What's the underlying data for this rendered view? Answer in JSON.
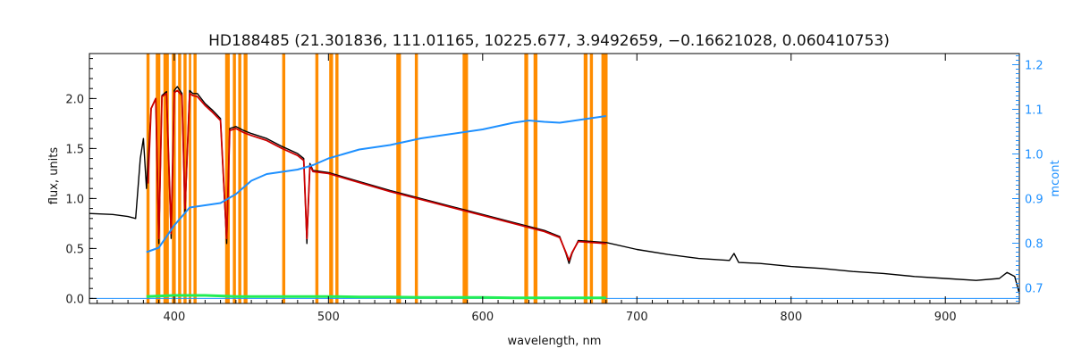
{
  "chart_data": {
    "type": "line",
    "title": "HD188485   (21.301836, 111.01165, 10225.677, 3.9492659, −0.16621028, 0.060410753)",
    "xlabel": "wavelength, nm",
    "ylabel": "flux, units",
    "y2label": "mcont",
    "xlim": [
      345,
      948
    ],
    "ylim": [
      -0.05,
      2.45
    ],
    "y2lim": [
      0.665,
      1.225
    ],
    "x_ticks": [
      400,
      500,
      600,
      700,
      800,
      900
    ],
    "y_ticks": [
      0.0,
      0.5,
      1.0,
      1.5,
      2.0
    ],
    "y2_ticks": [
      0.7,
      0.8,
      0.9,
      1.0,
      1.1,
      1.2
    ],
    "grid": false,
    "colors": {
      "observed": "#000000",
      "model": "#cc0000",
      "continuum": "#1e90ff",
      "residuals": "#22ee55",
      "masks": "#ff8c00"
    },
    "mask_windows_nm": [
      [
        382,
        384
      ],
      [
        388,
        391
      ],
      [
        393,
        396.5
      ],
      [
        398.5,
        401
      ],
      [
        402.5,
        404.5
      ],
      [
        406,
        408
      ],
      [
        409.5,
        411
      ],
      [
        412.5,
        414.5
      ],
      [
        433,
        436
      ],
      [
        438,
        440
      ],
      [
        441.5,
        443.5
      ],
      [
        445,
        447.5
      ],
      [
        470,
        472
      ],
      [
        491.5,
        493.5
      ],
      [
        500.5,
        503
      ],
      [
        504.5,
        506.5
      ],
      [
        544,
        547
      ],
      [
        556,
        558
      ],
      [
        587,
        590.5
      ],
      [
        627,
        629.5
      ],
      [
        633,
        635.5
      ],
      [
        665.5,
        668
      ],
      [
        669.5,
        671.5
      ],
      [
        677,
        681
      ]
    ],
    "series": [
      {
        "name": "",
        "role": "observed",
        "axis": "left",
        "x": [
          345,
          360,
          370,
          375,
          378,
          380,
          382,
          385,
          388,
          390,
          392,
          395,
          398,
          400,
          402,
          405,
          407,
          410,
          412,
          415,
          420,
          425,
          430,
          434,
          436,
          440,
          445,
          450,
          460,
          470,
          480,
          484,
          486,
          488,
          490,
          500,
          520,
          540,
          560,
          580,
          600,
          620,
          640,
          650,
          654,
          656,
          658,
          662,
          680,
          700,
          720,
          740,
          760,
          763,
          766,
          780,
          800,
          820,
          840,
          860,
          880,
          900,
          920,
          935,
          940,
          945,
          948
        ],
        "y": [
          0.85,
          0.84,
          0.82,
          0.8,
          1.4,
          1.6,
          1.1,
          1.9,
          2.0,
          0.55,
          2.03,
          2.07,
          0.6,
          2.08,
          2.12,
          2.05,
          0.85,
          2.08,
          2.05,
          2.05,
          1.95,
          1.88,
          1.8,
          0.55,
          1.7,
          1.72,
          1.68,
          1.65,
          1.6,
          1.52,
          1.45,
          1.4,
          0.55,
          1.35,
          1.28,
          1.26,
          1.17,
          1.08,
          1.0,
          0.92,
          0.84,
          0.76,
          0.68,
          0.62,
          0.45,
          0.35,
          0.45,
          0.58,
          0.56,
          0.49,
          0.44,
          0.4,
          0.38,
          0.45,
          0.36,
          0.35,
          0.32,
          0.3,
          0.27,
          0.25,
          0.22,
          0.2,
          0.18,
          0.2,
          0.26,
          0.22,
          0.05
        ]
      },
      {
        "name": "",
        "role": "model",
        "axis": "left",
        "x": [
          383,
          385,
          388,
          390,
          392,
          395,
          398,
          400,
          402,
          405,
          407,
          410,
          412,
          415,
          420,
          425,
          430,
          434,
          436,
          440,
          445,
          450,
          460,
          470,
          480,
          484,
          486,
          488,
          490,
          500,
          520,
          540,
          560,
          580,
          600,
          620,
          640,
          650,
          654,
          656,
          658,
          662,
          680
        ],
        "y": [
          1.15,
          1.9,
          2.0,
          0.6,
          2.02,
          2.05,
          0.65,
          2.06,
          2.08,
          2.03,
          0.9,
          2.05,
          2.03,
          2.02,
          1.93,
          1.86,
          1.78,
          0.6,
          1.68,
          1.7,
          1.66,
          1.63,
          1.58,
          1.5,
          1.43,
          1.38,
          0.6,
          1.33,
          1.27,
          1.25,
          1.16,
          1.07,
          0.99,
          0.91,
          0.83,
          0.75,
          0.67,
          0.61,
          0.46,
          0.38,
          0.46,
          0.57,
          0.55
        ]
      },
      {
        "name": "",
        "role": "continuum",
        "axis": "right",
        "x": [
          382,
          390,
          400,
          410,
          420,
          430,
          440,
          450,
          460,
          470,
          480,
          490,
          500,
          510,
          520,
          540,
          560,
          580,
          600,
          620,
          630,
          640,
          650,
          660,
          670,
          680
        ],
        "y": [
          0.78,
          0.79,
          0.84,
          0.88,
          0.885,
          0.89,
          0.91,
          0.94,
          0.955,
          0.96,
          0.965,
          0.975,
          0.99,
          1.0,
          1.01,
          1.02,
          1.035,
          1.045,
          1.055,
          1.07,
          1.075,
          1.072,
          1.07,
          1.075,
          1.08,
          1.085
        ]
      },
      {
        "name": "",
        "role": "residuals",
        "axis": "left",
        "x": [
          382,
          400,
          420,
          440,
          460,
          480,
          500,
          520,
          540,
          560,
          580,
          600,
          620,
          640,
          660,
          680
        ],
        "y": [
          0.02,
          0.03,
          0.03,
          0.02,
          0.02,
          0.02,
          0.02,
          0.015,
          0.015,
          0.01,
          0.01,
          0.01,
          0.005,
          0.005,
          0.005,
          0.005
        ]
      },
      {
        "name": "",
        "role": "baseline",
        "axis": "left",
        "x": [
          345,
          948
        ],
        "y": [
          0.0,
          0.0
        ]
      }
    ]
  }
}
